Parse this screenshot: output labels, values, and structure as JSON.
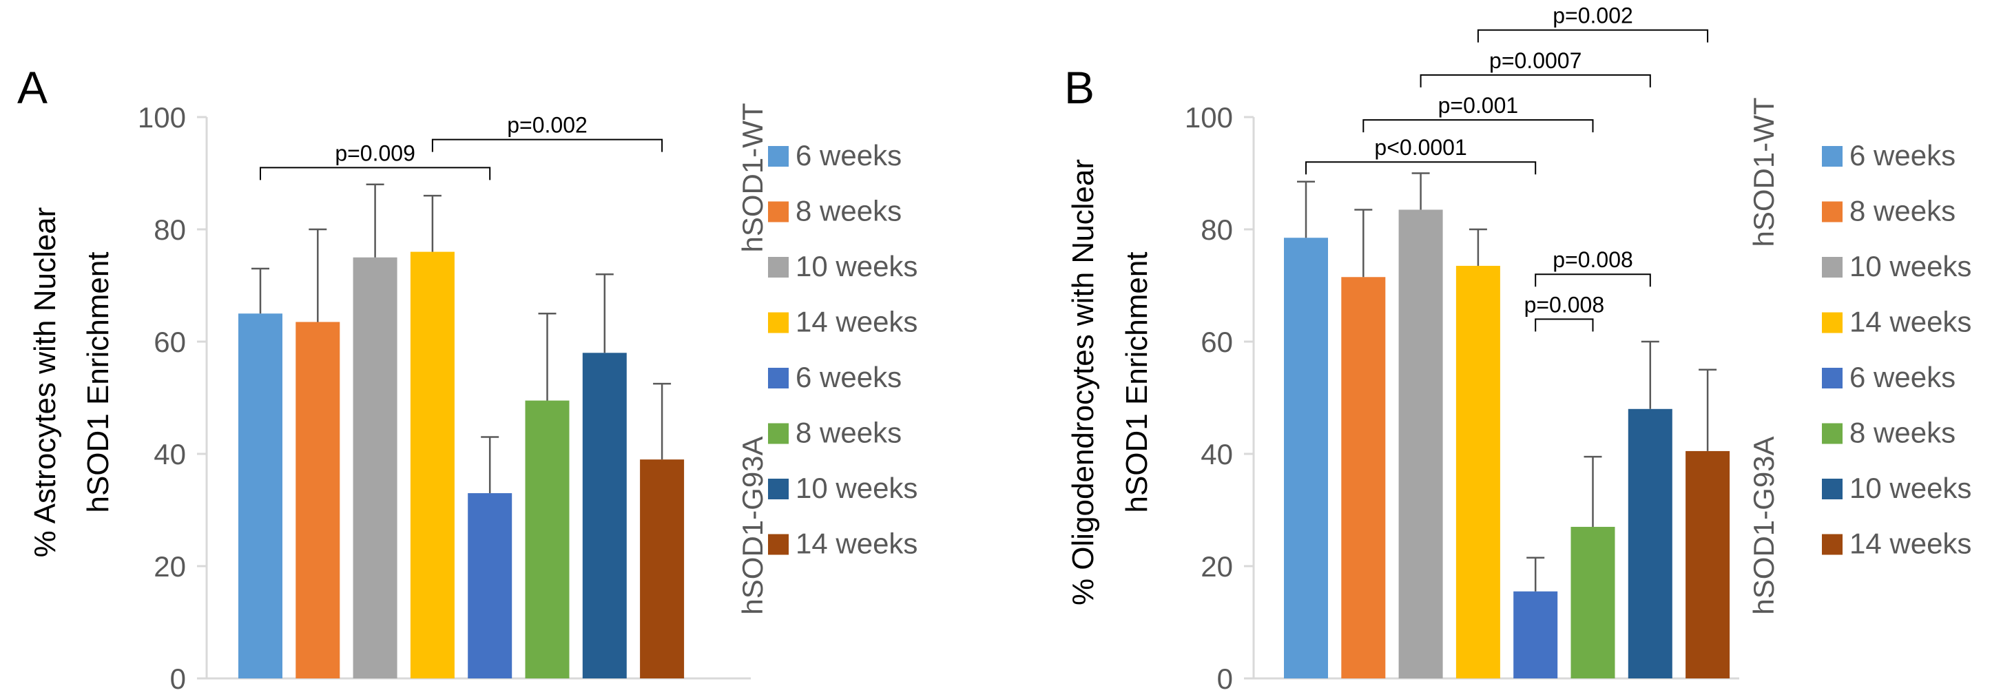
{
  "colors": {
    "series": [
      "#5b9bd5",
      "#ed7d31",
      "#a5a5a5",
      "#ffc000",
      "#4472c4",
      "#70ad47",
      "#255e91",
      "#9e480e"
    ],
    "axis": "#d9d9d9",
    "tick_text": "#595959",
    "text": "#000000"
  },
  "chart_data": [
    {
      "type": "bar",
      "panel_label": "A",
      "ylabel": [
        "% Astrocytes with Nuclear",
        "hSOD1 Enrichment"
      ],
      "ylim": [
        0,
        100
      ],
      "yticks": [
        0,
        20,
        40,
        60,
        80,
        100
      ],
      "categories": [
        "hSOD1-WT 6 weeks",
        "hSOD1-WT 8 weeks",
        "hSOD1-WT 10 weeks",
        "hSOD1-WT 14 weeks",
        "hSOD1-G93A 6 weeks",
        "hSOD1-G93A 8 weeks",
        "hSOD1-G93A 10 weeks",
        "hSOD1-G93A 14 weeks"
      ],
      "values": [
        65,
        63.5,
        75,
        76,
        33,
        49.5,
        58,
        39
      ],
      "error_upper": [
        73,
        80,
        88,
        86,
        43,
        65,
        72,
        52.5
      ],
      "significance": [
        {
          "from": 0,
          "to": 4,
          "height": 91,
          "label": "p=0.009"
        },
        {
          "from": 3,
          "to": 7,
          "height": 96,
          "label": "p=0.002"
        }
      ],
      "legend": {
        "group_labels": [
          "hSOD1-WT",
          "hSOD1-G93A"
        ],
        "entries": [
          "6 weeks",
          "8 weeks",
          "10 weeks",
          "14 weeks",
          "6 weeks",
          "8 weeks",
          "10 weeks",
          "14 weeks"
        ]
      }
    },
    {
      "type": "bar",
      "panel_label": "B",
      "ylabel": [
        "% Oligodendrocytes with Nuclear",
        "hSOD1 Enrichment"
      ],
      "ylim": [
        0,
        100
      ],
      "yticks": [
        0,
        20,
        40,
        60,
        80,
        100
      ],
      "categories": [
        "hSOD1-WT 6 weeks",
        "hSOD1-WT 8 weeks",
        "hSOD1-WT 10 weeks",
        "hSOD1-WT 14 weeks",
        "hSOD1-G93A 6 weeks",
        "hSOD1-G93A 8 weeks",
        "hSOD1-G93A 10 weeks",
        "hSOD1-G93A 14 weeks"
      ],
      "values": [
        78.5,
        71.5,
        83.5,
        73.5,
        15.5,
        27,
        48,
        40.5
      ],
      "error_upper": [
        88.5,
        83.5,
        90,
        80,
        21.5,
        39.5,
        60,
        55
      ],
      "significance": [
        {
          "from": 0,
          "to": 4,
          "height": 92,
          "label": "p<0.0001"
        },
        {
          "from": 1,
          "to": 5,
          "height": 99.5,
          "label": "p=0.001"
        },
        {
          "from": 2,
          "to": 6,
          "height": 107.5,
          "label": "p=0.0007"
        },
        {
          "from": 3,
          "to": 7,
          "height": 115.5,
          "label": "p=0.002"
        },
        {
          "from": 4,
          "to": 5,
          "height": 64,
          "label": "p=0.008"
        },
        {
          "from": 4,
          "to": 6,
          "height": 72,
          "label": "p=0.008"
        }
      ],
      "legend": {
        "group_labels": [
          "hSOD1-WT",
          "hSOD1-G93A"
        ],
        "entries": [
          "6 weeks",
          "8 weeks",
          "10 weeks",
          "14 weeks",
          "6 weeks",
          "8 weeks",
          "10 weeks",
          "14 weeks"
        ]
      }
    }
  ]
}
